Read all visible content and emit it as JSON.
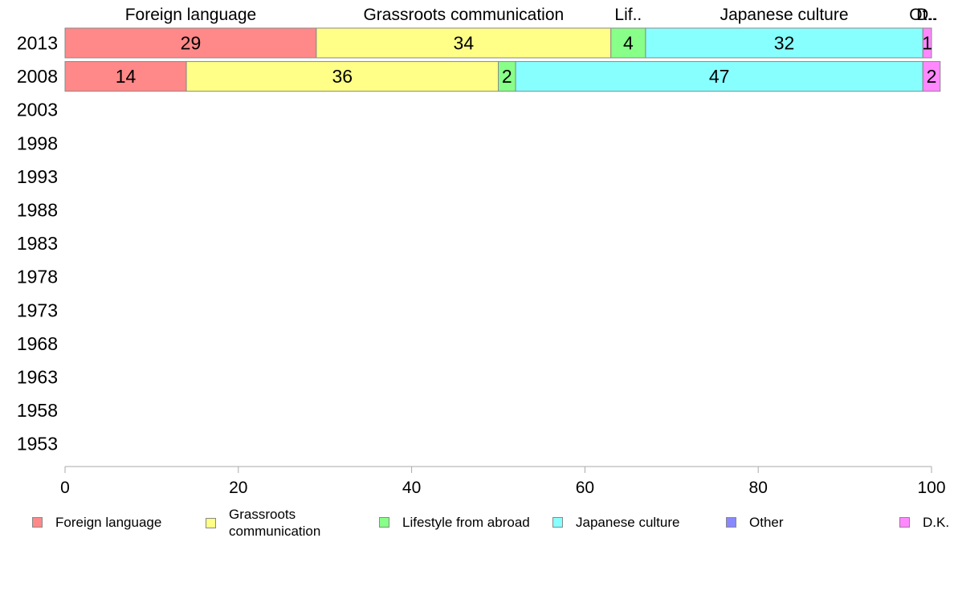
{
  "chart_data": {
    "type": "bar",
    "orientation": "horizontal",
    "stacked": true,
    "categories": [
      "2013",
      "2008",
      "2003",
      "1998",
      "1993",
      "1988",
      "1983",
      "1978",
      "1973",
      "1968",
      "1963",
      "1958",
      "1953"
    ],
    "series": [
      {
        "name": "Foreign language",
        "color": "#ff8888",
        "values": [
          29,
          14,
          null,
          null,
          null,
          null,
          null,
          null,
          null,
          null,
          null,
          null,
          null
        ]
      },
      {
        "name": "Grassroots communication",
        "color": "#ffff88",
        "values": [
          34,
          36,
          null,
          null,
          null,
          null,
          null,
          null,
          null,
          null,
          null,
          null,
          null
        ]
      },
      {
        "name": "Lifestyle from abroad",
        "color": "#88ff88",
        "values": [
          4,
          2,
          null,
          null,
          null,
          null,
          null,
          null,
          null,
          null,
          null,
          null,
          null
        ]
      },
      {
        "name": "Japanese culture",
        "color": "#88ffff",
        "values": [
          32,
          47,
          null,
          null,
          null,
          null,
          null,
          null,
          null,
          null,
          null,
          null,
          null
        ]
      },
      {
        "name": "Other",
        "color": "#8888ff",
        "values": [
          0,
          0,
          null,
          null,
          null,
          null,
          null,
          null,
          null,
          null,
          null,
          null,
          null
        ]
      },
      {
        "name": "D.K.",
        "color": "#ff88ff",
        "values": [
          1,
          2,
          null,
          null,
          null,
          null,
          null,
          null,
          null,
          null,
          null,
          null,
          null
        ]
      }
    ],
    "top_labels": [
      "Foreign language",
      "Grassroots communication",
      "Lif..",
      "Japanese culture",
      "Ot..",
      "D.."
    ],
    "xlim": [
      0,
      100
    ],
    "xticks": [
      "0",
      "20",
      "40",
      "60",
      "80",
      "100"
    ],
    "grid": false,
    "legend_position": "bottom"
  },
  "legend": [
    {
      "label": "Foreign language",
      "color": "#ff8888"
    },
    {
      "label": "Grassroots\ncommunication",
      "color": "#ffff88"
    },
    {
      "label": "Lifestyle from abroad",
      "color": "#88ff88"
    },
    {
      "label": "Japanese culture",
      "color": "#88ffff"
    },
    {
      "label": "Other",
      "color": "#8888ff"
    },
    {
      "label": "D.K.",
      "color": "#ff88ff"
    }
  ]
}
